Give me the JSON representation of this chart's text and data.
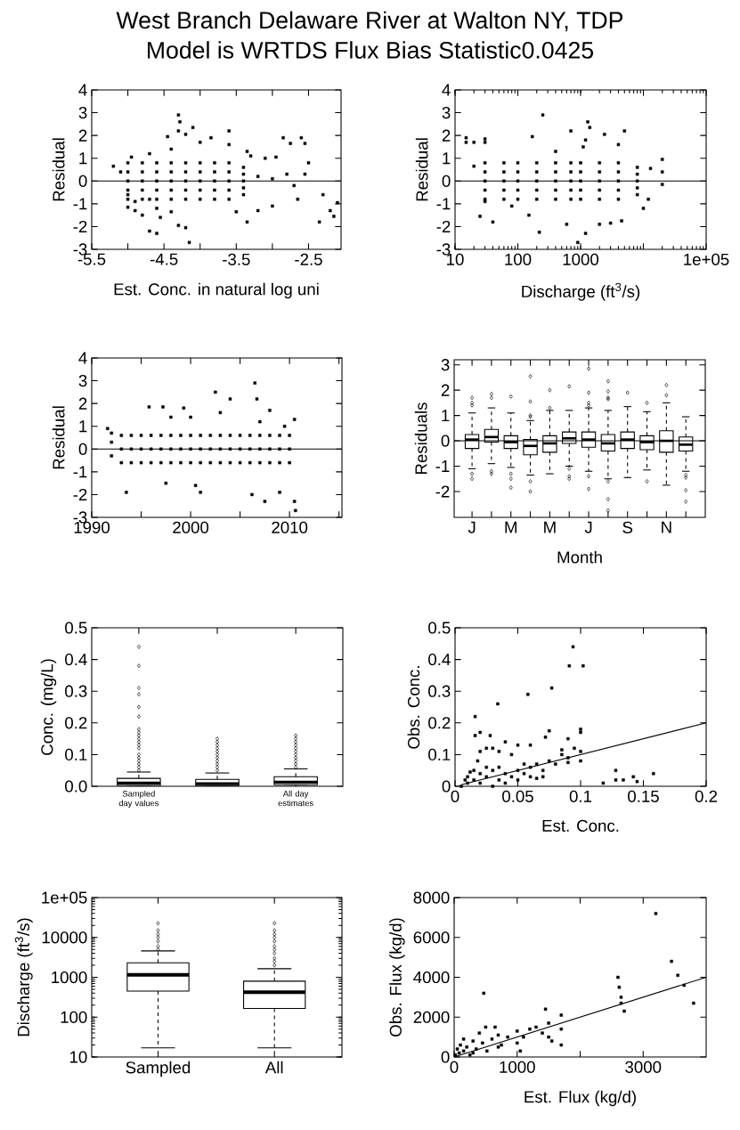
{
  "chart_data": [
    {
      "type": "scatter",
      "title": "West Branch Delaware River at Walton NY, TDP",
      "subtitle": "Model is WRTDS Flux Bias Statistic0.0425",
      "xlabel": "Est. Conc. in natural log uni",
      "ylabel": "Residual",
      "xlim": [
        -5.5,
        -2.05
      ],
      "ylim": [
        -3,
        4
      ],
      "xticks": [
        -5.5,
        {
          "value": -5,
          "label": null
        },
        -4.5,
        {
          "value": -4,
          "label": null
        },
        -3.5,
        {
          "value": -3,
          "label": null
        },
        -2.5
      ],
      "yticks": [
        -3,
        -2,
        -1,
        0,
        1,
        2,
        3,
        4
      ],
      "marker": "square",
      "color": "#000000",
      "ref_lines": [
        {
          "axis": "y",
          "value": 0
        }
      ],
      "x": [
        -4.3,
        -4.28,
        -4.3,
        -4.1,
        -4.45,
        -4.2,
        -3.6,
        -3.85,
        -4.0,
        -2.85,
        -2.6,
        -2.55,
        -2.75,
        -3.35,
        -3.6,
        -3.3,
        -2.95,
        -3.1,
        -2.5,
        -2.55,
        -5.2,
        -5.1,
        -4.95,
        -4.7,
        -4.4,
        -4.15,
        -4.6,
        -4.7,
        -4.3,
        -4.2,
        -3.35,
        -2.35,
        -2.3,
        -2.2,
        -2.15,
        -2.1,
        -3.5,
        -3.2,
        -3.0,
        -2.65,
        -4.9,
        -5.0,
        -4.8,
        -4.55,
        -4.4,
        -4.6,
        -4.9,
        -5.0,
        -4.7,
        -5.0,
        -5.0,
        -5.0,
        -5.0,
        -5.0,
        -4.8,
        -4.8,
        -4.8,
        -4.8,
        -4.8,
        -4.6,
        -4.6,
        -4.6,
        -4.6,
        -4.6,
        -4.4,
        -4.4,
        -4.4,
        -4.4,
        -4.4,
        -4.2,
        -4.2,
        -4.2,
        -4.2,
        -4.2,
        -4.0,
        -4.0,
        -4.0,
        -4.0,
        -4.0,
        -3.8,
        -3.8,
        -3.8,
        -3.8,
        -3.8,
        -3.6,
        -3.6,
        -3.6,
        -3.6,
        -3.6,
        -3.4,
        -3.4,
        -3.4,
        -3.4,
        -3.4,
        -3.2,
        -3.0,
        -2.8,
        -2.7
      ],
      "values": [
        2.9,
        2.6,
        2.2,
        2.35,
        1.95,
        2.05,
        2.2,
        1.9,
        1.7,
        1.9,
        1.9,
        1.65,
        1.65,
        1.3,
        1.6,
        1.1,
        1.05,
        1.0,
        0.8,
        0.3,
        0.65,
        0.4,
        1.05,
        1.2,
        1.4,
        -2.7,
        -2.3,
        -2.2,
        -1.95,
        -2.05,
        -1.8,
        -1.8,
        -0.6,
        -1.3,
        -1.55,
        -0.95,
        -1.35,
        -1.3,
        -1.1,
        -0.8,
        -1.3,
        -1.15,
        -1.5,
        -1.6,
        -1.35,
        -1.2,
        -0.9,
        -0.6,
        -0.8,
        -0.8,
        -0.4,
        0,
        0.4,
        0.8,
        -0.8,
        -0.4,
        0,
        0.4,
        0.8,
        -0.8,
        -0.4,
        0,
        0.4,
        0.8,
        -0.8,
        -0.4,
        0,
        0.4,
        0.8,
        -0.8,
        -0.4,
        0,
        0.4,
        0.8,
        -0.8,
        -0.4,
        0,
        0.4,
        0.8,
        -0.8,
        -0.4,
        0,
        0.4,
        0.8,
        -0.8,
        -0.4,
        0,
        0.4,
        0.8,
        -0.6,
        -0.3,
        0,
        0.3,
        0.6,
        0.2,
        0.1,
        0.3,
        -0.2
      ]
    },
    {
      "type": "scatter",
      "xlabel": "Discharge (ft$^{3}$/s)",
      "ylabel": "Residual",
      "log": "x",
      "xlim": [
        10,
        100000
      ],
      "ylim": [
        -3,
        4
      ],
      "xticks": [
        10,
        100,
        1000,
        {
          "value": 10000,
          "label": null
        },
        {
          "value": 100000,
          "label": "1e+05"
        }
      ],
      "yticks": [
        -3,
        -2,
        -1,
        0,
        1,
        2,
        3,
        4
      ],
      "marker": "square",
      "color": "#000000",
      "ref_lines": [
        {
          "axis": "y",
          "value": 0
        }
      ],
      "x": [
        15,
        15,
        20,
        30,
        30,
        20,
        40,
        25,
        250,
        170,
        220,
        900,
        1200,
        700,
        1300,
        1400,
        2400,
        5000,
        4000,
        3000,
        2000,
        4500,
        600,
        10000,
        20000,
        20000,
        20000,
        13000,
        12000,
        1200,
        1100,
        400,
        150,
        80,
        30,
        30,
        30,
        30,
        30,
        30,
        60,
        60,
        60,
        60,
        60,
        100,
        100,
        100,
        100,
        100,
        200,
        200,
        200,
        200,
        200,
        400,
        400,
        400,
        400,
        400,
        700,
        700,
        700,
        700,
        700,
        1000,
        1000,
        1000,
        1000,
        1000,
        2000,
        2000,
        2000,
        2000,
        2000,
        4000,
        4000,
        4000,
        4000,
        4000,
        8000,
        8000,
        8000,
        8000,
        8000
      ],
      "values": [
        1.9,
        1.7,
        1.7,
        1.85,
        1.7,
        0.65,
        -1.8,
        -1.55,
        2.9,
        1.95,
        -2.25,
        -2.7,
        -2.3,
        2.2,
        2.6,
        2.35,
        2.05,
        2.2,
        1.6,
        -1.85,
        -1.9,
        -1.75,
        -1.9,
        -1.2,
        0.95,
        -0.15,
        0.4,
        0.55,
        -0.8,
        1.8,
        1.5,
        1.3,
        -1.5,
        -1.1,
        -0.9,
        -0.8,
        -0.4,
        0,
        0.4,
        0.8,
        -0.8,
        -0.4,
        0,
        0.4,
        0.8,
        -0.8,
        -0.4,
        0,
        0.4,
        0.8,
        -0.8,
        -0.4,
        0,
        0.4,
        0.8,
        -0.8,
        -0.4,
        0,
        0.4,
        0.8,
        -0.8,
        -0.4,
        0,
        0.4,
        0.8,
        -0.8,
        -0.4,
        0,
        0.4,
        0.8,
        -0.8,
        -0.4,
        0,
        0.4,
        0.8,
        -0.8,
        -0.4,
        0,
        0.4,
        0.8,
        -0.6,
        -0.3,
        0,
        0.3,
        0.6
      ]
    },
    {
      "type": "scatter",
      "ylabel": "Residual",
      "xlim": [
        1990,
        2015.3
      ],
      "ylim": [
        -3,
        4
      ],
      "xticks": [
        1990,
        {
          "value": 1995,
          "label": null
        },
        2000,
        {
          "value": 2005,
          "label": null
        },
        2010,
        {
          "value": 2015,
          "label": null
        }
      ],
      "yticks": [
        -3,
        -2,
        -1,
        0,
        1,
        2,
        3,
        4
      ],
      "marker": "square",
      "color": "#000000",
      "ref_lines": [
        {
          "axis": "y",
          "value": 0
        }
      ],
      "x": [
        1993.5,
        1995.8,
        1997.2,
        1999.3,
        2002.5,
        2004,
        2003,
        2006.5,
        2006.7,
        2008,
        2010.5,
        2010.5,
        2010.6,
        2007.5,
        2009,
        2001,
        2000.5,
        2006.2,
        1997.5,
        1991.6,
        1998,
        2000,
        2009.5,
        2007,
        1992,
        1992,
        1992,
        1993,
        1993,
        1993,
        1994,
        1994,
        1994,
        1995,
        1995,
        1995,
        1996,
        1996,
        1996,
        1997,
        1997,
        1997,
        1998,
        1998,
        1998,
        1999,
        1999,
        1999,
        2000,
        2000,
        2000,
        2001,
        2001,
        2001,
        2002,
        2002,
        2002,
        2003,
        2003,
        2003,
        2004,
        2004,
        2004,
        2005,
        2005,
        2005,
        2006,
        2006,
        2006,
        2007,
        2007,
        2007,
        2008,
        2008,
        2008,
        2009,
        2009,
        2009,
        2010,
        2010,
        2010
      ],
      "values": [
        -1.9,
        1.85,
        1.85,
        1.8,
        2.5,
        2.2,
        1.6,
        2.9,
        2.2,
        1.7,
        1.3,
        -2.3,
        -2.7,
        -2.3,
        -1.9,
        -1.9,
        -1.6,
        -2.0,
        -1.5,
        0.9,
        1.4,
        1.4,
        1.0,
        1.2,
        -0.3,
        0.3,
        0.7,
        -0.6,
        0,
        0.6,
        -0.6,
        0,
        0.6,
        -0.6,
        0,
        0.6,
        -0.6,
        0,
        0.6,
        -0.6,
        0,
        0.6,
        -0.6,
        0,
        0.6,
        -0.6,
        0,
        0.6,
        -0.6,
        0,
        0.6,
        -0.6,
        0,
        0.6,
        -0.6,
        0,
        0.6,
        -0.6,
        0,
        0.6,
        -0.6,
        0,
        0.6,
        -0.6,
        0,
        0.6,
        -0.6,
        0,
        0.6,
        -0.6,
        0,
        0.6,
        -0.6,
        0,
        0.6,
        -0.6,
        0,
        0.6,
        -0.6,
        0,
        0.6
      ]
    },
    {
      "type": "box",
      "xlabel": "Month",
      "ylabel": "Residuals",
      "ylim": [
        -3.02,
        3.2
      ],
      "yticks": [
        -2,
        -1,
        0,
        1,
        2,
        3
      ],
      "ref_lines": [
        {
          "axis": "y",
          "value": 0
        }
      ],
      "categories": [
        "J",
        null,
        "M",
        null,
        "M",
        null,
        "J",
        null,
        "S",
        null,
        "N",
        null
      ],
      "boxes": [
        {
          "low": -1.1,
          "q1": -0.3,
          "median": 0.05,
          "q3": 0.25,
          "high": 1.1,
          "outliers": [
            1.7,
            1.5,
            1.4,
            -1.3,
            -1.5
          ]
        },
        {
          "low": -0.9,
          "q1": -0.05,
          "median": 0.15,
          "q3": 0.45,
          "high": 1.3,
          "outliers": [
            1.85,
            1.7,
            -1.2,
            -1.3
          ]
        },
        {
          "low": -1.05,
          "q1": -0.3,
          "median": -0.05,
          "q3": 0.2,
          "high": 1.1,
          "outliers": [
            1.75,
            -1.3,
            -1.5,
            -1.85
          ]
        },
        {
          "low": -1.35,
          "q1": -0.55,
          "median": -0.2,
          "q3": 0.05,
          "high": 0.8,
          "outliers": [
            2.55,
            1.55,
            1.0,
            0.95,
            -1.6,
            -2.0
          ]
        },
        {
          "low": -1.3,
          "q1": -0.45,
          "median": -0.1,
          "q3": 0.2,
          "high": 1.2,
          "outliers": [
            2.0,
            1.3
          ]
        },
        {
          "low": -1.0,
          "q1": -0.1,
          "median": 0.1,
          "q3": 0.35,
          "high": 1.2,
          "outliers": [
            2.15,
            -1.1,
            -1.4,
            -1.5
          ]
        },
        {
          "low": -1.2,
          "q1": -0.25,
          "median": 0.05,
          "q3": 0.35,
          "high": 1.3,
          "outliers": [
            2.85,
            1.9,
            1.5,
            1.4,
            -1.4,
            -1.9
          ]
        },
        {
          "low": -1.5,
          "q1": -0.4,
          "median": -0.1,
          "q3": 0.25,
          "high": 1.2,
          "outliers": [
            2.35,
            1.95,
            1.7,
            1.65,
            -1.6,
            -2.3,
            -2.75
          ]
        },
        {
          "low": -1.45,
          "q1": -0.3,
          "median": 0.05,
          "q3": 0.35,
          "high": 1.35,
          "outliers": [
            1.9
          ]
        },
        {
          "low": -1.15,
          "q1": -0.35,
          "median": -0.05,
          "q3": 0.2,
          "high": 1.15,
          "outliers": [
            1.5,
            -1.6
          ]
        },
        {
          "low": -1.75,
          "q1": -0.45,
          "median": 0.0,
          "q3": 0.4,
          "high": 1.5,
          "outliers": [
            2.2,
            1.8
          ]
        },
        {
          "low": -1.2,
          "q1": -0.4,
          "median": -0.15,
          "q3": 0.15,
          "high": 0.95,
          "outliers": [
            -1.35,
            -1.45,
            -1.95,
            -2.4
          ]
        }
      ]
    },
    {
      "type": "box",
      "ylabel": "Conc. (mg/L)",
      "ylim": [
        0,
        0.5
      ],
      "yticks": [
        {
          "value": 0,
          "label": "0.0"
        },
        0.1,
        0.2,
        0.3,
        0.4,
        0.5
      ],
      "categories": [
        "Sampled day values",
        null,
        "All day estimates"
      ],
      "boxes": [
        {
          "low": 0.003,
          "q1": 0.003,
          "median": 0.01,
          "q3": 0.025,
          "high": 0.045,
          "outliers": [
            0.05,
            0.06,
            0.07,
            0.08,
            0.09,
            0.1,
            0.12,
            0.13,
            0.14,
            0.15,
            0.16,
            0.17,
            0.18,
            0.22,
            0.25,
            0.29,
            0.31,
            0.38,
            0.44
          ]
        },
        {
          "low": 0.002,
          "q1": 0.002,
          "median": 0.008,
          "q3": 0.022,
          "high": 0.042,
          "outliers": [
            0.05,
            0.06,
            0.07,
            0.08,
            0.09,
            0.1,
            0.11,
            0.12,
            0.13,
            0.14,
            0.15
          ]
        },
        {
          "low": 0.005,
          "q1": 0.005,
          "median": 0.013,
          "q3": 0.03,
          "high": 0.055,
          "outliers": [
            0.06,
            0.07,
            0.08,
            0.09,
            0.1,
            0.11,
            0.12,
            0.13,
            0.14,
            0.15,
            0.16
          ]
        }
      ]
    },
    {
      "type": "scatter",
      "xlabel": "Est. Conc.",
      "ylabel": "Obs. Conc.",
      "xlim": [
        0,
        0.2
      ],
      "ylim": [
        0,
        0.5
      ],
      "xticks": [
        0,
        0.05,
        0.1,
        0.15,
        0.2
      ],
      "yticks": [
        0,
        0.1,
        0.2,
        0.3,
        0.4,
        0.5
      ],
      "series": [
        {
          "type": "scatter",
          "color": "#000000",
          "marker": "square",
          "x": [
            0.005,
            0.01,
            0.01,
            0.015,
            0.015,
            0.02,
            0.02,
            0.025,
            0.025,
            0.03,
            0.03,
            0.035,
            0.035,
            0.04,
            0.04,
            0.045,
            0.05,
            0.05,
            0.055,
            0.06,
            0.06,
            0.065,
            0.07,
            0.075,
            0.08,
            0.085,
            0.09,
            0.09,
            0.1,
            0.1,
            0.1,
            0.1,
            0.095,
            0.09,
            0.085,
            0.075,
            0.072,
            0.07,
            0.065,
            0.06,
            0.05,
            0.04,
            0.035,
            0.03,
            0.025,
            0.02,
            0.018,
            0.016,
            0.016,
            0.02,
            0.028,
            0.034,
            0.058,
            0.077,
            0.091,
            0.094,
            0.102,
            0.118,
            0.128,
            0.128,
            0.134,
            0.142,
            0.145,
            0.158,
            0.045,
            0.055,
            0.012,
            0.008
          ],
          "values": [
            0.0,
            0.01,
            0.03,
            0.02,
            0.05,
            0.01,
            0.04,
            0.03,
            0.06,
            0.0,
            0.05,
            0.02,
            0.06,
            0.01,
            0.04,
            0.03,
            0.05,
            0.02,
            0.04,
            0.06,
            0.03,
            0.07,
            0.05,
            0.08,
            0.07,
            0.1,
            0.09,
            0.075,
            0.08,
            0.11,
            0.17,
            0.18,
            0.12,
            0.15,
            0.115,
            0.175,
            0.155,
            0.03,
            0.025,
            0.13,
            0.13,
            0.14,
            0.11,
            0.12,
            0.12,
            0.11,
            0.08,
            0.16,
            0.22,
            0.17,
            0.16,
            0.26,
            0.29,
            0.31,
            0.38,
            0.44,
            0.38,
            0.01,
            0.05,
            0.02,
            0.02,
            0.03,
            0.015,
            0.04,
            0.1,
            0.07,
            0.045,
            0.02
          ]
        },
        {
          "type": "line",
          "color": "#000000",
          "x": [
            0.005,
            0.2
          ],
          "values": [
            0.005,
            0.2
          ]
        }
      ]
    },
    {
      "type": "box",
      "ylabel": "Discharge (ft$^{3}$/s)",
      "log": "y",
      "ylim": [
        10,
        100000
      ],
      "yticks": [
        10,
        100,
        1000,
        10000,
        {
          "value": 100000,
          "label": "1e+05"
        }
      ],
      "categories": [
        "Sampled",
        "All"
      ],
      "boxes": [
        {
          "low": 17,
          "q1": 450,
          "median": 1150,
          "q3": 2300,
          "high": 4600,
          "outliers": [
            5000,
            6000,
            8000,
            10000,
            12000,
            15000,
            22700
          ]
        },
        {
          "low": 17,
          "q1": 165,
          "median": 425,
          "q3": 800,
          "high": 1640,
          "outliers": [
            2000,
            2500,
            3000,
            4000,
            5000,
            6000,
            8000,
            10000,
            12000,
            15000,
            22700
          ]
        }
      ]
    },
    {
      "type": "scatter",
      "xlabel": "Est. Flux (kg/d)",
      "ylabel": "Obs. Flux (kg/d)",
      "xlim": [
        0,
        4000
      ],
      "ylim": [
        0,
        8000
      ],
      "xticks": [
        0,
        1000,
        {
          "value": 2000,
          "label": null
        },
        3000
      ],
      "yticks": [
        0,
        2000,
        4000,
        6000,
        8000
      ],
      "series": [
        {
          "type": "scatter",
          "color": "#000000",
          "marker": "square",
          "x": [
            20,
            50,
            80,
            100,
            150,
            200,
            250,
            300,
            350,
            400,
            450,
            500,
            520,
            600,
            650,
            700,
            700,
            470,
            1000,
            1000,
            1050,
            1100,
            1200,
            1300,
            1400,
            1450,
            1500,
            1500,
            1550,
            1700,
            1700,
            1700,
            2600,
            2620,
            2650,
            2650,
            2700,
            3200,
            3450,
            3550,
            3650,
            3800,
            850,
            750,
            300,
            150
          ],
          "values": [
            100,
            400,
            200,
            600,
            300,
            500,
            100,
            800,
            400,
            1200,
            700,
            1500,
            300,
            900,
            1500,
            500,
            1100,
            3200,
            1300,
            700,
            300,
            1000,
            1400,
            1500,
            1200,
            2400,
            1000,
            1700,
            800,
            2100,
            1400,
            600,
            4000,
            3500,
            3000,
            2700,
            2300,
            7200,
            4800,
            4100,
            3600,
            2700,
            1000,
            600,
            200,
            900
          ]
        },
        {
          "type": "line",
          "color": "#000000",
          "x": [
            0,
            4000
          ],
          "values": [
            0,
            4000
          ]
        }
      ]
    }
  ]
}
